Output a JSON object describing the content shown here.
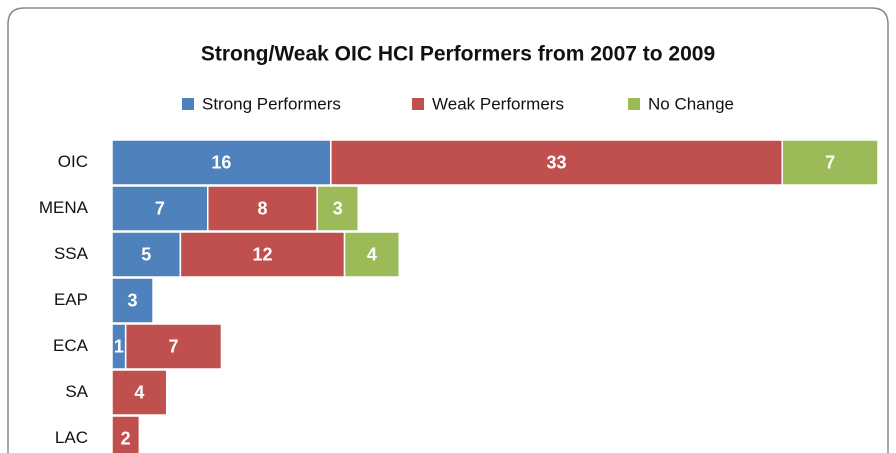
{
  "chart_data": {
    "type": "bar",
    "orientation": "horizontal",
    "stacked": true,
    "title": "Strong/Weak OIC HCI Performers  from 2007 to 2009",
    "categories": [
      "OIC",
      "MENA",
      "SSA",
      "EAP",
      "ECA",
      "SA",
      "LAC"
    ],
    "series": [
      {
        "name": "Strong Performers",
        "color": "#4f81bd",
        "values": [
          16,
          7,
          5,
          3,
          1,
          0,
          0
        ]
      },
      {
        "name": "Weak Performers",
        "color": "#c0504d",
        "values": [
          33,
          8,
          12,
          0,
          7,
          4,
          2
        ]
      },
      {
        "name": "No Change",
        "color": "#9bbb59",
        "values": [
          7,
          3,
          4,
          0,
          0,
          0,
          0
        ]
      }
    ],
    "legend": "top",
    "grid": false
  }
}
